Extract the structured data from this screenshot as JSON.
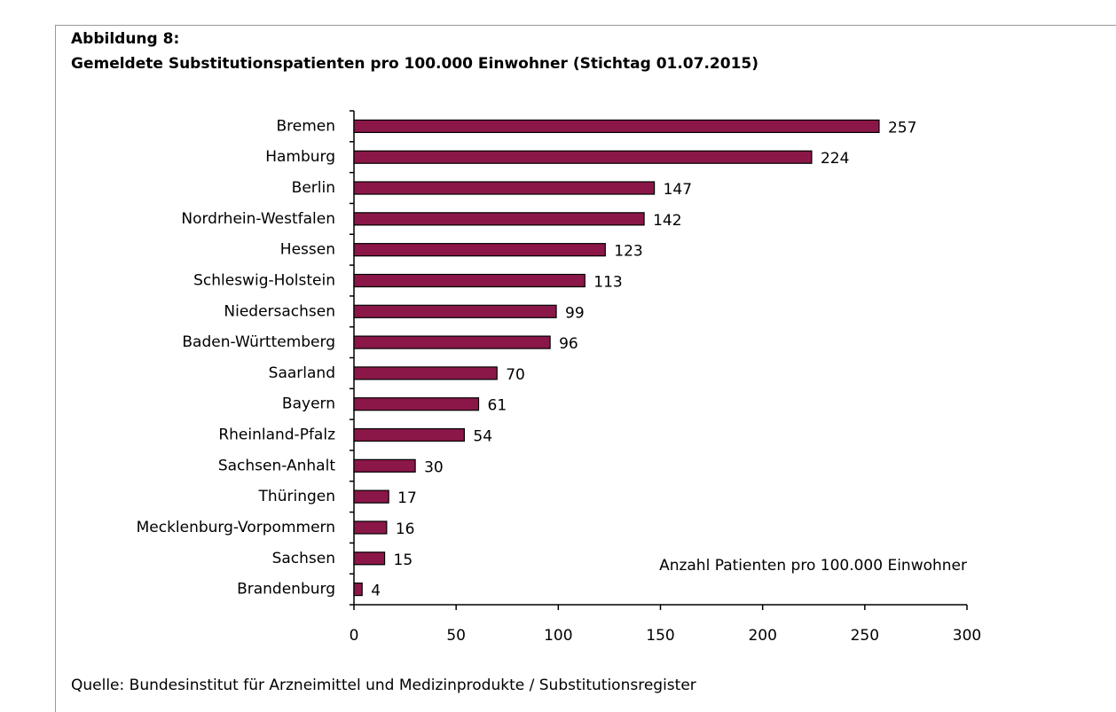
{
  "chart_data": {
    "type": "barh",
    "title": "Abbildung 8:",
    "subtitle": "Gemeldete Substitutionspatienten pro 100.000 Einwohner (Stichtag 01.07.2015)",
    "x_label": "Anzahl Patienten pro 100.000 Einwohner",
    "source": "Quelle: Bundesinstitut für Arzneimittel und Medizinprodukte / Substitutionsregister",
    "categories": [
      "Bremen",
      "Hamburg",
      "Berlin",
      "Nordrhein-Westfalen",
      "Hessen",
      "Schleswig-Holstein",
      "Niedersachsen",
      "Baden-Württemberg",
      "Saarland",
      "Bayern",
      "Rheinland-Pfalz",
      "Sachsen-Anhalt",
      "Thüringen",
      "Mecklenburg-Vorpommern",
      "Sachsen",
      "Brandenburg"
    ],
    "values": [
      257,
      224,
      147,
      142,
      123,
      113,
      99,
      96,
      70,
      61,
      54,
      30,
      17,
      16,
      15,
      4
    ],
    "color": "#8b1748",
    "xlim": [
      0,
      300
    ],
    "xticks": [
      0,
      50,
      100,
      150,
      200,
      250,
      300
    ],
    "grid": false
  }
}
